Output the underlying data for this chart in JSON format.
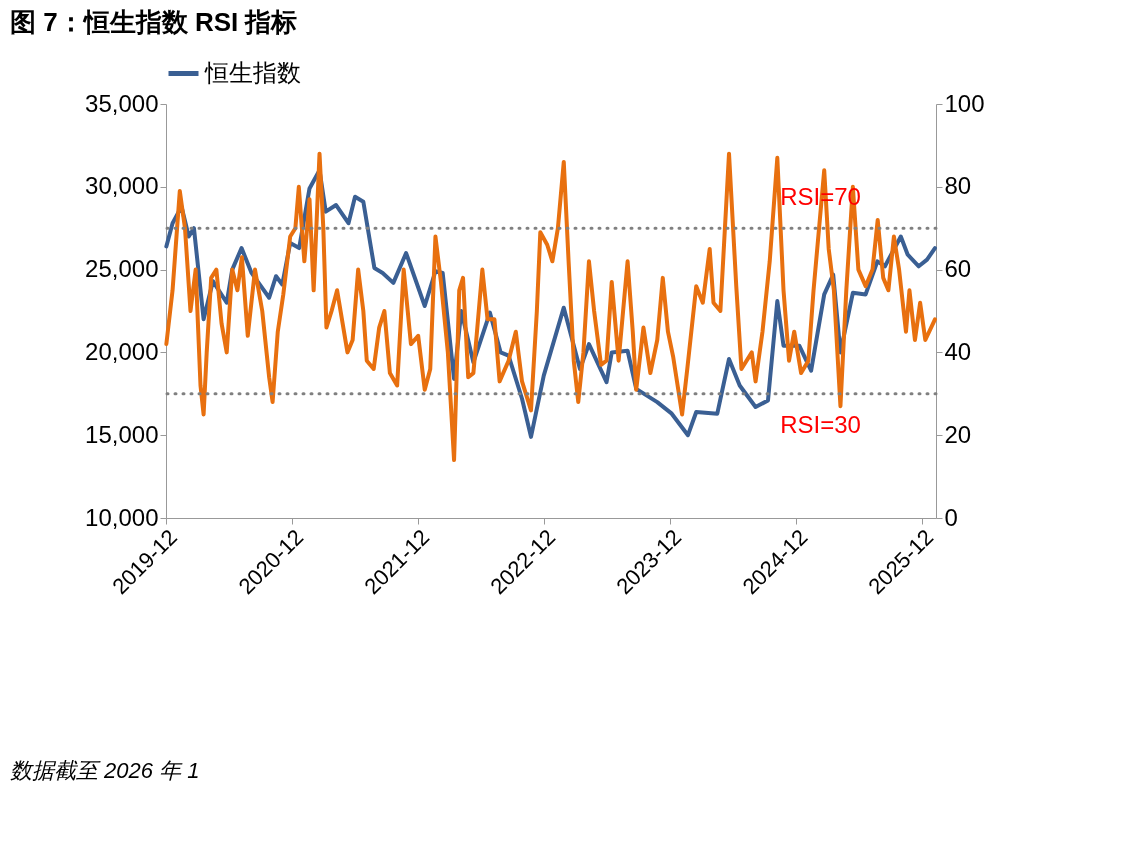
{
  "chart_data": {
    "type": "line",
    "title": "图 7：恒生指数 RSI 指标",
    "xlim": [
      "2019-12-01",
      "2026-01-10"
    ],
    "xticks": [
      "2019-12",
      "2020-12",
      "2021-12",
      "2022-12",
      "2023-12",
      "2024-12",
      "2025-12"
    ],
    "ylim": [
      10000,
      35000
    ],
    "yticks": [
      {
        "value": 10000,
        "label": "10,000"
      },
      {
        "value": 15000,
        "label": "15,000"
      },
      {
        "value": 20000,
        "label": "20,000"
      },
      {
        "value": 25000,
        "label": "25,000"
      },
      {
        "value": 30000,
        "label": "30,000"
      },
      {
        "value": 35000,
        "label": "35,000"
      }
    ],
    "y2lim": [
      0,
      100
    ],
    "y2ticks": [
      0,
      20,
      40,
      60,
      80,
      100
    ],
    "legend": "top",
    "grid": false,
    "marker": "none",
    "line_style": "solid",
    "ref_lines": [
      {
        "axis": "y2",
        "value": 70,
        "label": "RSI=70",
        "color": "#808080",
        "line_style": "dotted"
      },
      {
        "axis": "y2",
        "value": 30,
        "label": "RSI=30",
        "color": "#808080",
        "line_style": "dotted"
      }
    ],
    "annotations": [
      "数据截至 2026 年 1"
    ],
    "series": [
      {
        "name": "恒生指数",
        "color": "#3a5f93",
        "x": [
          "2019-12-02",
          "2019-12-20",
          "2020-01-15",
          "2020-02-05",
          "2020-02-20",
          "2020-03-19",
          "2020-04-15",
          "2020-05-25",
          "2020-06-10",
          "2020-07-07",
          "2020-08-05",
          "2020-09-25",
          "2020-10-15",
          "2020-11-02",
          "2020-11-25",
          "2020-12-21",
          "2021-01-20",
          "2021-02-18",
          "2021-03-08",
          "2021-04-07",
          "2021-05-13",
          "2021-06-01",
          "2021-06-25",
          "2021-07-27",
          "2021-08-20",
          "2021-09-20",
          "2021-10-27",
          "2021-12-20",
          "2022-01-20",
          "2022-02-10",
          "2022-03-15",
          "2022-04-05",
          "2022-05-10",
          "2022-06-27",
          "2022-07-28",
          "2022-08-20",
          "2022-09-28",
          "2022-10-24",
          "2022-11-30",
          "2023-01-27",
          "2023-03-15",
          "2023-04-10",
          "2023-05-31",
          "2023-06-15",
          "2023-07-31",
          "2023-08-25",
          "2023-10-25",
          "2023-12-06",
          "2024-01-22",
          "2024-02-15",
          "2024-04-16",
          "2024-05-20",
          "2024-06-20",
          "2024-08-05",
          "2024-09-10",
          "2024-10-07",
          "2024-10-25",
          "2024-12-10",
          "2025-01-13",
          "2025-02-20",
          "2025-03-18",
          "2025-04-08",
          "2025-05-14",
          "2025-06-20",
          "2025-07-24",
          "2025-08-15",
          "2025-09-30",
          "2025-10-20",
          "2025-11-21",
          "2025-12-15",
          "2026-01-07"
        ],
        "values": [
          26400,
          27800,
          28800,
          27000,
          27500,
          22000,
          24300,
          23000,
          25000,
          26300,
          24800,
          23300,
          24600,
          24100,
          26600,
          26300,
          29900,
          31000,
          28500,
          28900,
          27800,
          29400,
          29100,
          25100,
          24800,
          24200,
          26000,
          22800,
          24900,
          24800,
          18400,
          22500,
          19400,
          22400,
          20000,
          19800,
          17200,
          14900,
          18600,
          22700,
          19000,
          20500,
          18200,
          20000,
          20100,
          17800,
          17000,
          16300,
          15000,
          16400,
          16300,
          19600,
          18000,
          16700,
          17100,
          23100,
          20400,
          20400,
          18900,
          23500,
          24700,
          20000,
          23600,
          23500,
          25500,
          25200,
          27000,
          25900,
          25200,
          25600,
          26300
        ]
      },
      {
        "axis": "y2",
        "color": "#e8700f",
        "x": [
          "2019-12-02",
          "2019-12-20",
          "2020-01-10",
          "2020-01-25",
          "2020-02-10",
          "2020-02-25",
          "2020-03-10",
          "2020-03-19",
          "2020-03-28",
          "2020-04-10",
          "2020-04-25",
          "2020-05-10",
          "2020-05-25",
          "2020-06-10",
          "2020-06-25",
          "2020-07-08",
          "2020-07-25",
          "2020-08-15",
          "2020-09-05",
          "2020-09-25",
          "2020-10-05",
          "2020-10-20",
          "2020-11-05",
          "2020-11-25",
          "2020-12-10",
          "2020-12-20",
          "2021-01-05",
          "2021-01-20",
          "2021-02-01",
          "2021-02-18",
          "2021-03-01",
          "2021-03-10",
          "2021-03-25",
          "2021-04-10",
          "2021-05-10",
          "2021-05-25",
          "2021-06-10",
          "2021-06-25",
          "2021-07-05",
          "2021-07-25",
          "2021-08-10",
          "2021-08-25",
          "2021-09-10",
          "2021-10-01",
          "2021-10-20",
          "2021-11-10",
          "2021-12-01",
          "2021-12-20",
          "2022-01-05",
          "2022-01-20",
          "2022-02-05",
          "2022-02-25",
          "2022-03-15",
          "2022-03-30",
          "2022-04-10",
          "2022-04-25",
          "2022-05-10",
          "2022-06-05",
          "2022-06-20",
          "2022-07-10",
          "2022-07-25",
          "2022-08-20",
          "2022-09-10",
          "2022-09-28",
          "2022-10-24",
          "2022-11-10",
          "2022-11-20",
          "2022-12-10",
          "2022-12-25",
          "2023-01-10",
          "2023-01-27",
          "2023-02-10",
          "2023-02-25",
          "2023-03-10",
          "2023-03-25",
          "2023-04-10",
          "2023-04-25",
          "2023-05-15",
          "2023-05-31",
          "2023-06-15",
          "2023-07-05",
          "2023-07-31",
          "2023-08-15",
          "2023-08-25",
          "2023-09-15",
          "2023-10-05",
          "2023-10-25",
          "2023-11-10",
          "2023-11-25",
          "2023-12-10",
          "2024-01-05",
          "2024-01-20",
          "2024-02-15",
          "2024-03-05",
          "2024-03-25",
          "2024-04-05",
          "2024-04-25",
          "2024-05-20",
          "2024-06-10",
          "2024-06-25",
          "2024-07-25",
          "2024-08-05",
          "2024-08-25",
          "2024-09-15",
          "2024-10-07",
          "2024-10-25",
          "2024-11-10",
          "2024-11-25",
          "2024-12-15",
          "2025-01-05",
          "2025-01-20",
          "2025-02-20",
          "2025-03-05",
          "2025-03-20",
          "2025-04-08",
          "2025-04-25",
          "2025-05-14",
          "2025-05-30",
          "2025-06-20",
          "2025-07-10",
          "2025-07-25",
          "2025-08-10",
          "2025-08-25",
          "2025-09-10",
          "2025-09-25",
          "2025-10-15",
          "2025-10-25",
          "2025-11-10",
          "2025-11-25",
          "2025-12-10",
          "2026-01-07"
        ],
        "values": [
          42,
          55,
          79,
          70,
          50,
          60,
          32,
          25,
          40,
          58,
          60,
          47,
          40,
          60,
          55,
          63,
          44,
          60,
          50,
          34,
          28,
          45,
          54,
          68,
          70,
          80,
          62,
          77,
          55,
          88,
          70,
          46,
          50,
          55,
          40,
          43,
          60,
          50,
          38,
          36,
          46,
          50,
          35,
          32,
          60,
          42,
          44,
          31,
          36,
          68,
          57,
          40,
          14,
          55,
          58,
          34,
          35,
          60,
          48,
          48,
          33,
          38,
          45,
          33,
          26,
          50,
          69,
          66,
          62,
          70,
          86,
          62,
          38,
          28,
          40,
          62,
          50,
          37,
          38,
          57,
          38,
          62,
          45,
          31,
          46,
          35,
          43,
          58,
          45,
          39,
          25,
          36,
          56,
          52,
          65,
          52,
          50,
          88,
          56,
          36,
          40,
          33,
          45,
          62,
          87,
          55,
          38,
          45,
          35,
          38,
          55,
          84,
          65,
          55,
          27,
          55,
          80,
          60,
          56,
          60,
          72,
          58,
          55,
          68,
          60,
          45,
          55,
          43,
          52,
          43,
          48
        ]
      }
    ]
  }
}
